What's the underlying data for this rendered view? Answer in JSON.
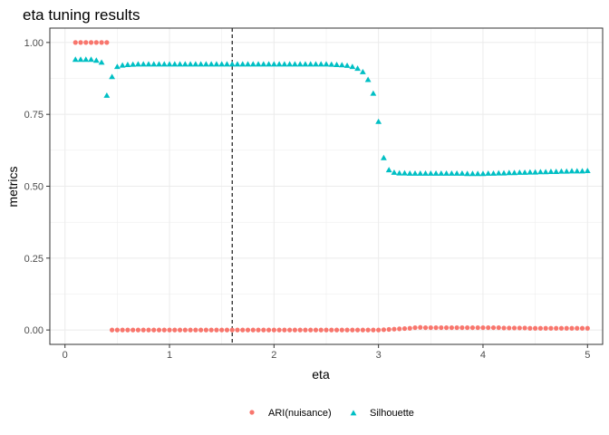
{
  "chart_data": {
    "type": "scatter",
    "title": "eta tuning results",
    "xlabel": "eta",
    "ylabel": "metrics",
    "xlim": [
      -0.145,
      5.145
    ],
    "ylim": [
      -0.05,
      1.05
    ],
    "x_ticks": [
      0,
      1,
      2,
      3,
      4,
      5
    ],
    "x_tick_labels": [
      "0",
      "1",
      "2",
      "3",
      "4",
      "5"
    ],
    "y_ticks": [
      0,
      0.25,
      0.5,
      0.75,
      1.0
    ],
    "y_tick_labels": [
      "0.00",
      "0.25",
      "0.50",
      "0.75",
      "1.00"
    ],
    "grid": true,
    "legend_position": "bottom",
    "reference_line": {
      "axis": "x",
      "value": 1.6,
      "style": "dashed"
    },
    "series": [
      {
        "name": "ARI(nuisance)",
        "shape": "circle",
        "color": "#F8766D",
        "points": [
          [
            0.1,
            1.0
          ],
          [
            0.15,
            1.0
          ],
          [
            0.2,
            1.0
          ],
          [
            0.25,
            1.0
          ],
          [
            0.3,
            1.0
          ],
          [
            0.35,
            1.0
          ],
          [
            0.4,
            1.0
          ],
          [
            0.45,
            0.0
          ],
          [
            0.5,
            0.0
          ],
          [
            0.55,
            0.0
          ],
          [
            0.6,
            0.0
          ],
          [
            0.65,
            0.0
          ],
          [
            0.7,
            0.0
          ],
          [
            0.75,
            0.0
          ],
          [
            0.8,
            0.0
          ],
          [
            0.85,
            0.0
          ],
          [
            0.9,
            0.0
          ],
          [
            0.95,
            0.0
          ],
          [
            1.0,
            0.0
          ],
          [
            1.05,
            0.0
          ],
          [
            1.1,
            0.0
          ],
          [
            1.15,
            0.0
          ],
          [
            1.2,
            0.0
          ],
          [
            1.25,
            0.0
          ],
          [
            1.3,
            0.0
          ],
          [
            1.35,
            0.0
          ],
          [
            1.4,
            0.0
          ],
          [
            1.45,
            0.0
          ],
          [
            1.5,
            0.0
          ],
          [
            1.55,
            0.0
          ],
          [
            1.6,
            0.0
          ],
          [
            1.65,
            0.0
          ],
          [
            1.7,
            0.0
          ],
          [
            1.75,
            0.0
          ],
          [
            1.8,
            0.0
          ],
          [
            1.85,
            0.0
          ],
          [
            1.9,
            0.0
          ],
          [
            1.95,
            0.0
          ],
          [
            2.0,
            0.0
          ],
          [
            2.05,
            0.0
          ],
          [
            2.1,
            0.0
          ],
          [
            2.15,
            0.0
          ],
          [
            2.2,
            0.0
          ],
          [
            2.25,
            0.0
          ],
          [
            2.3,
            0.0
          ],
          [
            2.35,
            0.0
          ],
          [
            2.4,
            0.0
          ],
          [
            2.45,
            0.0
          ],
          [
            2.5,
            0.0
          ],
          [
            2.55,
            0.0
          ],
          [
            2.6,
            0.0
          ],
          [
            2.65,
            0.0
          ],
          [
            2.7,
            0.0
          ],
          [
            2.75,
            0.0
          ],
          [
            2.8,
            0.0
          ],
          [
            2.85,
            0.0
          ],
          [
            2.9,
            0.0
          ],
          [
            2.95,
            0.0
          ],
          [
            3.0,
            0.0
          ],
          [
            3.05,
            0.001
          ],
          [
            3.1,
            0.002
          ],
          [
            3.15,
            0.003
          ],
          [
            3.2,
            0.004
          ],
          [
            3.25,
            0.005
          ],
          [
            3.3,
            0.006
          ],
          [
            3.35,
            0.008
          ],
          [
            3.4,
            0.009
          ],
          [
            3.45,
            0.008
          ],
          [
            3.5,
            0.008
          ],
          [
            3.55,
            0.008
          ],
          [
            3.6,
            0.008
          ],
          [
            3.65,
            0.008
          ],
          [
            3.7,
            0.008
          ],
          [
            3.75,
            0.008
          ],
          [
            3.8,
            0.008
          ],
          [
            3.85,
            0.008
          ],
          [
            3.9,
            0.008
          ],
          [
            3.95,
            0.008
          ],
          [
            4.0,
            0.008
          ],
          [
            4.05,
            0.008
          ],
          [
            4.1,
            0.008
          ],
          [
            4.15,
            0.008
          ],
          [
            4.2,
            0.007
          ],
          [
            4.25,
            0.007
          ],
          [
            4.3,
            0.007
          ],
          [
            4.35,
            0.007
          ],
          [
            4.4,
            0.007
          ],
          [
            4.45,
            0.006
          ],
          [
            4.5,
            0.006
          ],
          [
            4.55,
            0.006
          ],
          [
            4.6,
            0.006
          ],
          [
            4.65,
            0.006
          ],
          [
            4.7,
            0.006
          ],
          [
            4.75,
            0.006
          ],
          [
            4.8,
            0.006
          ],
          [
            4.85,
            0.006
          ],
          [
            4.9,
            0.006
          ],
          [
            4.95,
            0.006
          ],
          [
            5.0,
            0.006
          ]
        ]
      },
      {
        "name": "Silhouette",
        "shape": "triangle",
        "color": "#00BFC4",
        "points": [
          [
            0.1,
            0.94
          ],
          [
            0.15,
            0.94
          ],
          [
            0.2,
            0.94
          ],
          [
            0.25,
            0.94
          ],
          [
            0.3,
            0.937
          ],
          [
            0.35,
            0.93
          ],
          [
            0.4,
            0.815
          ],
          [
            0.45,
            0.88
          ],
          [
            0.5,
            0.915
          ],
          [
            0.55,
            0.92
          ],
          [
            0.6,
            0.922
          ],
          [
            0.65,
            0.923
          ],
          [
            0.7,
            0.924
          ],
          [
            0.75,
            0.924
          ],
          [
            0.8,
            0.924
          ],
          [
            0.85,
            0.924
          ],
          [
            0.9,
            0.924
          ],
          [
            0.95,
            0.924
          ],
          [
            1.0,
            0.924
          ],
          [
            1.05,
            0.924
          ],
          [
            1.1,
            0.924
          ],
          [
            1.15,
            0.924
          ],
          [
            1.2,
            0.924
          ],
          [
            1.25,
            0.924
          ],
          [
            1.3,
            0.924
          ],
          [
            1.35,
            0.924
          ],
          [
            1.4,
            0.924
          ],
          [
            1.45,
            0.924
          ],
          [
            1.5,
            0.924
          ],
          [
            1.55,
            0.924
          ],
          [
            1.6,
            0.924
          ],
          [
            1.65,
            0.924
          ],
          [
            1.7,
            0.924
          ],
          [
            1.75,
            0.924
          ],
          [
            1.8,
            0.924
          ],
          [
            1.85,
            0.924
          ],
          [
            1.9,
            0.924
          ],
          [
            1.95,
            0.924
          ],
          [
            2.0,
            0.924
          ],
          [
            2.05,
            0.924
          ],
          [
            2.1,
            0.924
          ],
          [
            2.15,
            0.924
          ],
          [
            2.2,
            0.924
          ],
          [
            2.25,
            0.924
          ],
          [
            2.3,
            0.924
          ],
          [
            2.35,
            0.924
          ],
          [
            2.4,
            0.924
          ],
          [
            2.45,
            0.924
          ],
          [
            2.5,
            0.924
          ],
          [
            2.55,
            0.923
          ],
          [
            2.6,
            0.922
          ],
          [
            2.65,
            0.921
          ],
          [
            2.7,
            0.919
          ],
          [
            2.75,
            0.915
          ],
          [
            2.8,
            0.909
          ],
          [
            2.85,
            0.897
          ],
          [
            2.9,
            0.87
          ],
          [
            2.95,
            0.822
          ],
          [
            3.0,
            0.724
          ],
          [
            3.05,
            0.598
          ],
          [
            3.1,
            0.556
          ],
          [
            3.15,
            0.547
          ],
          [
            3.2,
            0.545
          ],
          [
            3.25,
            0.545
          ],
          [
            3.3,
            0.544
          ],
          [
            3.35,
            0.544
          ],
          [
            3.4,
            0.544
          ],
          [
            3.45,
            0.544
          ],
          [
            3.5,
            0.544
          ],
          [
            3.55,
            0.544
          ],
          [
            3.6,
            0.544
          ],
          [
            3.65,
            0.544
          ],
          [
            3.7,
            0.544
          ],
          [
            3.75,
            0.544
          ],
          [
            3.8,
            0.544
          ],
          [
            3.85,
            0.543
          ],
          [
            3.9,
            0.543
          ],
          [
            3.95,
            0.543
          ],
          [
            4.0,
            0.543
          ],
          [
            4.05,
            0.544
          ],
          [
            4.1,
            0.544
          ],
          [
            4.15,
            0.545
          ],
          [
            4.2,
            0.545
          ],
          [
            4.25,
            0.546
          ],
          [
            4.3,
            0.546
          ],
          [
            4.35,
            0.547
          ],
          [
            4.4,
            0.547
          ],
          [
            4.45,
            0.548
          ],
          [
            4.5,
            0.548
          ],
          [
            4.55,
            0.549
          ],
          [
            4.6,
            0.549
          ],
          [
            4.65,
            0.55
          ],
          [
            4.7,
            0.55
          ],
          [
            4.75,
            0.551
          ],
          [
            4.8,
            0.551
          ],
          [
            4.85,
            0.552
          ],
          [
            4.9,
            0.552
          ],
          [
            4.95,
            0.552
          ],
          [
            5.0,
            0.553
          ]
        ]
      }
    ]
  }
}
